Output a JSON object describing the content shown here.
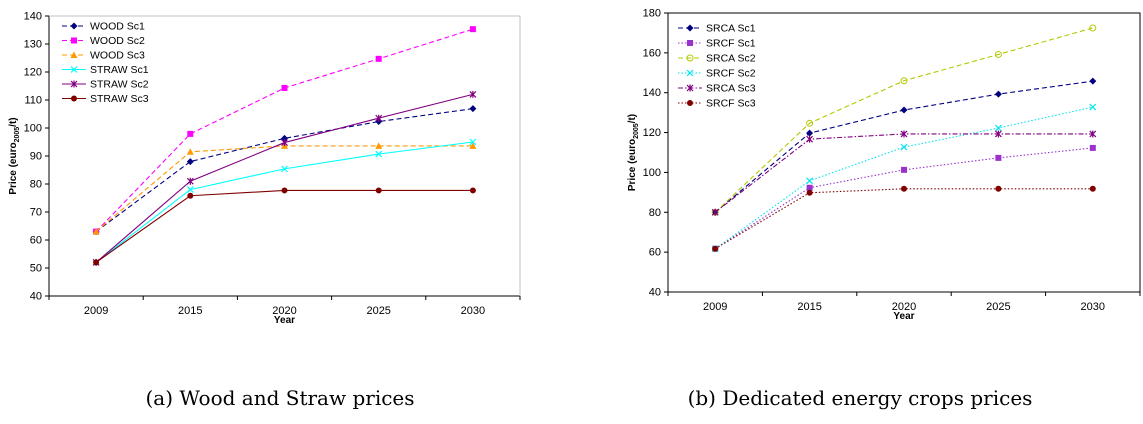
{
  "chart_data": [
    {
      "type": "line",
      "ylabel_main": "Price (euro",
      "ylabel_sub": "2005",
      "ylabel_tail": "/t)",
      "xlabel": "Year",
      "ylim": [
        40,
        140
      ],
      "ytick_step": 10,
      "categories": [
        "2009",
        "2015",
        "2020",
        "2025",
        "2030"
      ],
      "legend_position": "top-left",
      "grid": false,
      "series": [
        {
          "name": "WOOD Sc1",
          "color": "#000080",
          "marker": "diamond",
          "dash": "dashed",
          "values": [
            63,
            88,
            96.3,
            102.3,
            106.9
          ]
        },
        {
          "name": "WOOD Sc2",
          "color": "#ff00ff",
          "marker": "square",
          "dash": "dashed",
          "values": [
            63,
            97.9,
            114.3,
            124.7,
            135.3
          ]
        },
        {
          "name": "WOOD Sc3",
          "color": "#ff9900",
          "marker": "triangle",
          "dash": "dashed",
          "values": [
            63,
            91.5,
            93.6,
            93.6,
            93.6
          ]
        },
        {
          "name": "STRAW Sc1",
          "color": "#00ffff",
          "marker": "x",
          "dash": "solid",
          "values": [
            52,
            78,
            85.4,
            90.7,
            95
          ]
        },
        {
          "name": "STRAW Sc2",
          "color": "#800080",
          "marker": "star",
          "dash": "solid",
          "values": [
            52,
            81,
            94.8,
            103.5,
            112
          ]
        },
        {
          "name": "STRAW Sc3",
          "color": "#800000",
          "marker": "circle",
          "dash": "solid",
          "values": [
            52,
            75.8,
            77.7,
            77.7,
            77.7
          ]
        }
      ]
    },
    {
      "type": "line",
      "ylabel_main": "Price (euro",
      "ylabel_sub": "2005",
      "ylabel_tail": "/t)",
      "xlabel": "Year",
      "ylim": [
        40,
        180
      ],
      "ytick_step": 20,
      "categories": [
        "2009",
        "2015",
        "2020",
        "2025",
        "2030"
      ],
      "legend_position": "top-left",
      "grid": false,
      "series": [
        {
          "name": "SRCA Sc1",
          "color": "#000080",
          "marker": "diamond",
          "dash": "dashed",
          "values": [
            80,
            119.7,
            131.3,
            139.3,
            145.8
          ]
        },
        {
          "name": "SRCF Sc1",
          "color": "#9933cc",
          "marker": "square",
          "dash": "dotted",
          "values": [
            61.7,
            92.3,
            101.3,
            107.3,
            112.3
          ]
        },
        {
          "name": "SRCA Sc2",
          "color": "#b4c800",
          "marker": "circle-open",
          "dash": "dashed",
          "values": [
            80,
            124.7,
            146,
            159.2,
            172.5
          ]
        },
        {
          "name": "SRCF Sc2",
          "color": "#00e5ee",
          "marker": "x",
          "dash": "dotted",
          "values": [
            61.7,
            95.8,
            112.7,
            122.3,
            132.8
          ]
        },
        {
          "name": "SRCA Sc3",
          "color": "#800080",
          "marker": "star",
          "dash": "dashdot",
          "values": [
            80,
            116.7,
            119.3,
            119.3,
            119.3
          ]
        },
        {
          "name": "SRCF Sc3",
          "color": "#800000",
          "marker": "circle",
          "dash": "dotted",
          "values": [
            61.7,
            89.8,
            91.8,
            91.8,
            91.8
          ]
        }
      ]
    }
  ],
  "captions": {
    "a": "(a) Wood and Straw prices",
    "b": "(b) Dedicated energy crops prices"
  }
}
